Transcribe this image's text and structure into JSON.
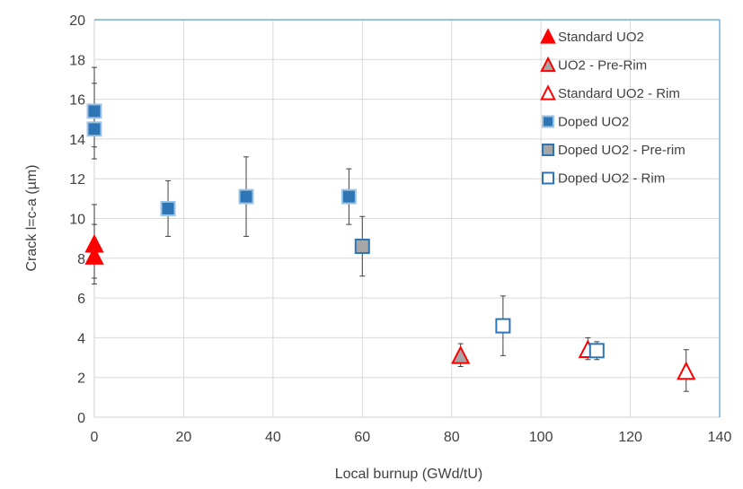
{
  "chart_data": {
    "type": "scatter",
    "title": "",
    "xlabel": "Local burnup (GWd/tU)",
    "ylabel": "Crack l=c-a (µm)",
    "xlim": [
      0,
      140
    ],
    "ylim": [
      0,
      20
    ],
    "x_ticks": [
      0,
      20,
      40,
      60,
      80,
      100,
      120,
      140
    ],
    "y_ticks": [
      0,
      2,
      4,
      6,
      8,
      10,
      12,
      14,
      16,
      18,
      20
    ],
    "grid": true,
    "legend_position": "top-right",
    "series": [
      {
        "name": "Standard UO2",
        "marker": "triangle",
        "fill": "#ff0000",
        "stroke": "#ff0000",
        "points": [
          {
            "x": 0,
            "y": 8.7,
            "err_low": 1.7,
            "err_high": 2.0
          },
          {
            "x": 0,
            "y": 8.1,
            "err_low": 1.4,
            "err_high": 1.6
          }
        ]
      },
      {
        "name": "UO2 - Pre-Rim",
        "marker": "triangle",
        "fill": "#a6a6a6",
        "stroke": "#ff0000",
        "points": [
          {
            "x": 82,
            "y": 3.1,
            "err_low": 0.55,
            "err_high": 0.6
          }
        ]
      },
      {
        "name": "Standard UO2 - Rim",
        "marker": "triangle",
        "fill": "#ffffff",
        "stroke": "#ff0000",
        "points": [
          {
            "x": 110.5,
            "y": 3.4,
            "err_low": 0.5,
            "err_high": 0.6
          },
          {
            "x": 132.5,
            "y": 2.3,
            "err_low": 1.0,
            "err_high": 1.1
          }
        ]
      },
      {
        "name": "Doped UO2",
        "marker": "square",
        "fill": "#2e75b6",
        "stroke": "#9dc3e6",
        "points": [
          {
            "x": 0,
            "y": 15.4,
            "err_low": 1.8,
            "err_high": 2.2
          },
          {
            "x": 0,
            "y": 14.5,
            "err_low": 1.5,
            "err_high": 2.3
          },
          {
            "x": 16.5,
            "y": 10.5,
            "err_low": 1.4,
            "err_high": 1.4
          },
          {
            "x": 34,
            "y": 11.1,
            "err_low": 2.0,
            "err_high": 2.0
          },
          {
            "x": 57,
            "y": 11.1,
            "err_low": 1.4,
            "err_high": 1.4
          }
        ]
      },
      {
        "name": "Doped UO2 - Pre-rim",
        "marker": "square",
        "fill": "#a6a6a6",
        "stroke": "#2e75b6",
        "points": [
          {
            "x": 60,
            "y": 8.6,
            "err_low": 1.5,
            "err_high": 1.5
          }
        ]
      },
      {
        "name": "Doped UO2 - Rim",
        "marker": "square",
        "fill": "#ffffff",
        "stroke": "#2e75b6",
        "points": [
          {
            "x": 91.5,
            "y": 4.6,
            "err_low": 1.5,
            "err_high": 1.5
          },
          {
            "x": 112.5,
            "y": 3.35,
            "err_low": 0.45,
            "err_high": 0.45
          }
        ]
      }
    ]
  }
}
